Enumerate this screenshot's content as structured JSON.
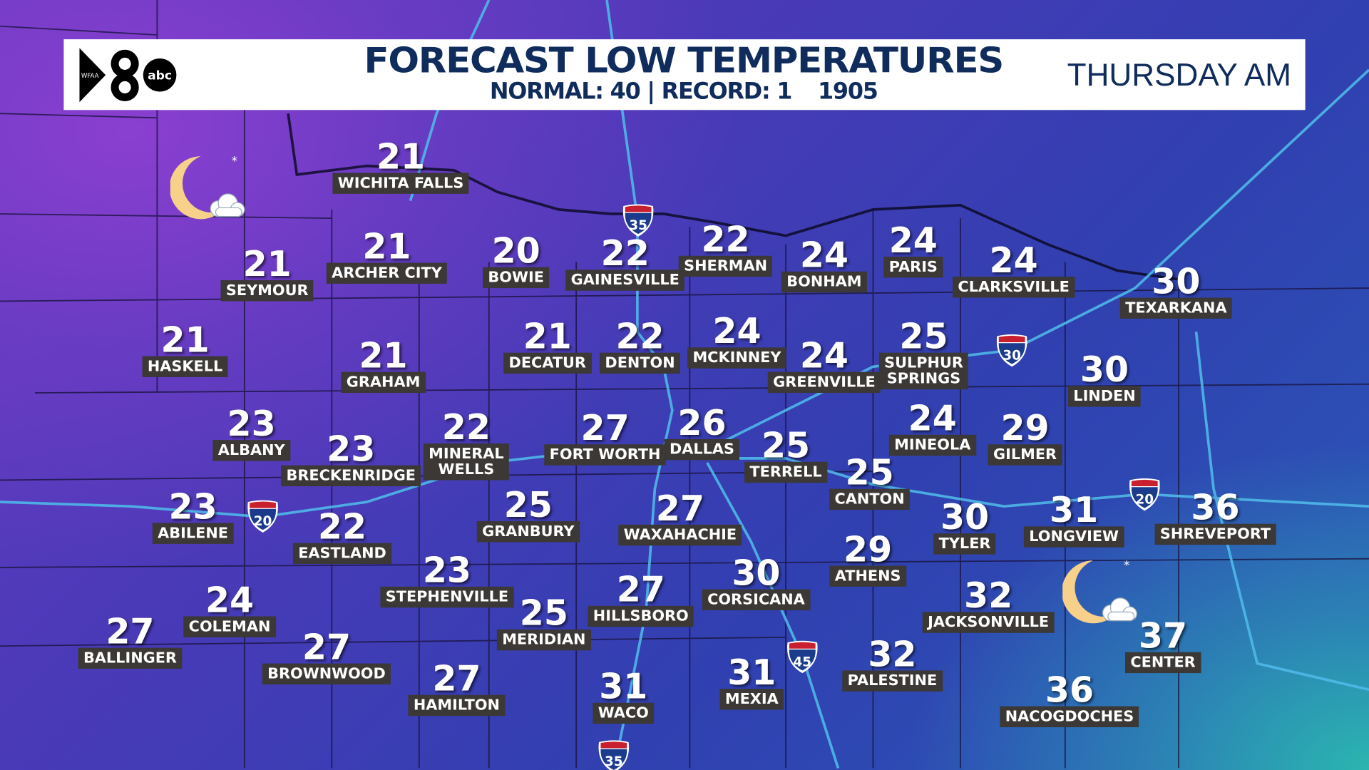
{
  "header": {
    "logo_text": "WFAA 8 abc",
    "title": "FORECAST LOW TEMPERATURES",
    "normal": "NORMAL: 40 | RECORD: 1",
    "record_year": "1905",
    "day": "THURSDAY AM"
  },
  "colors": {
    "title": "#0f2c5c",
    "label_bg": "#3b3835",
    "roads": "#4fb8e8"
  },
  "icons": [
    "moon-cloud-icon",
    "moon-cloud-icon"
  ],
  "interstates": [
    "35",
    "30",
    "20",
    "20",
    "45",
    "35"
  ],
  "cities": [
    {
      "name": "WICHITA FALLS",
      "temp": "21"
    },
    {
      "name": "SEYMOUR",
      "temp": "21"
    },
    {
      "name": "ARCHER CITY",
      "temp": "21"
    },
    {
      "name": "BOWIE",
      "temp": "20"
    },
    {
      "name": "GAINESVILLE",
      "temp": "22"
    },
    {
      "name": "SHERMAN",
      "temp": "22"
    },
    {
      "name": "BONHAM",
      "temp": "24"
    },
    {
      "name": "PARIS",
      "temp": "24"
    },
    {
      "name": "CLARKSVILLE",
      "temp": "24"
    },
    {
      "name": "TEXARKANA",
      "temp": "30"
    },
    {
      "name": "HASKELL",
      "temp": "21"
    },
    {
      "name": "GRAHAM",
      "temp": "21"
    },
    {
      "name": "DECATUR",
      "temp": "21"
    },
    {
      "name": "DENTON",
      "temp": "22"
    },
    {
      "name": "MCKINNEY",
      "temp": "24"
    },
    {
      "name": "GREENVILLE",
      "temp": "24"
    },
    {
      "name": "SULPHUR\nSPRINGS",
      "temp": "25"
    },
    {
      "name": "LINDEN",
      "temp": "30"
    },
    {
      "name": "ALBANY",
      "temp": "23"
    },
    {
      "name": "BRECKENRIDGE",
      "temp": "23"
    },
    {
      "name": "MINERAL\nWELLS",
      "temp": "22"
    },
    {
      "name": "FORT WORTH",
      "temp": "27"
    },
    {
      "name": "DALLAS",
      "temp": "26"
    },
    {
      "name": "TERRELL",
      "temp": "25"
    },
    {
      "name": "MINEOLA",
      "temp": "24"
    },
    {
      "name": "GILMER",
      "temp": "29"
    },
    {
      "name": "CANTON",
      "temp": "25"
    },
    {
      "name": "ABILENE",
      "temp": "23"
    },
    {
      "name": "EASTLAND",
      "temp": "22"
    },
    {
      "name": "GRANBURY",
      "temp": "25"
    },
    {
      "name": "WAXAHACHIE",
      "temp": "27"
    },
    {
      "name": "TYLER",
      "temp": "30"
    },
    {
      "name": "LONGVIEW",
      "temp": "31"
    },
    {
      "name": "SHREVEPORT",
      "temp": "36"
    },
    {
      "name": "STEPHENVILLE",
      "temp": "23"
    },
    {
      "name": "ATHENS",
      "temp": "29"
    },
    {
      "name": "CORSICANA",
      "temp": "30"
    },
    {
      "name": "HILLSBORO",
      "temp": "27"
    },
    {
      "name": "JACKSONVILLE",
      "temp": "32"
    },
    {
      "name": "COLEMAN",
      "temp": "24"
    },
    {
      "name": "BALLINGER",
      "temp": "27"
    },
    {
      "name": "MERIDIAN",
      "temp": "25"
    },
    {
      "name": "CENTER",
      "temp": "37"
    },
    {
      "name": "BROWNWOOD",
      "temp": "27"
    },
    {
      "name": "PALESTINE",
      "temp": "32"
    },
    {
      "name": "MEXIA",
      "temp": "31"
    },
    {
      "name": "HAMILTON",
      "temp": "27"
    },
    {
      "name": "WACO",
      "temp": "31"
    },
    {
      "name": "NACOGDOCHES",
      "temp": "36"
    }
  ]
}
